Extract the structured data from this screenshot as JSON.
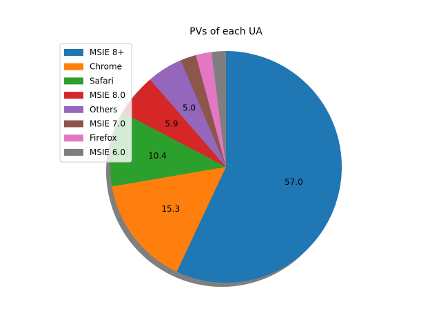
{
  "chart_data": {
    "type": "pie",
    "title": "PVs of each UA",
    "shadow": true,
    "start_angle_deg": 90,
    "direction": "clockwise",
    "autopct_format": "%.1f",
    "legend_position": "upper-left",
    "slices": [
      {
        "label": "MSIE 8+",
        "value": 57.0,
        "color": "#1f77b4",
        "pct_label": "57.0"
      },
      {
        "label": "Chrome",
        "value": 15.3,
        "color": "#ff7f0e",
        "pct_label": "15.3"
      },
      {
        "label": "Safari",
        "value": 10.4,
        "color": "#2ca02c",
        "pct_label": "10.4"
      },
      {
        "label": "MSIE 8.0",
        "value": 5.9,
        "color": "#d62728",
        "pct_label": "5.9"
      },
      {
        "label": "Others",
        "value": 5.0,
        "color": "#9467bd",
        "pct_label": "5.0"
      },
      {
        "label": "MSIE 7.0",
        "value": 2.2,
        "color": "#8c564b",
        "pct_label": ""
      },
      {
        "label": "Firefox",
        "value": 2.2,
        "color": "#e377c2",
        "pct_label": ""
      },
      {
        "label": "MSIE 6.0",
        "value": 2.0,
        "color": "#7f7f7f",
        "pct_label": ""
      }
    ]
  }
}
